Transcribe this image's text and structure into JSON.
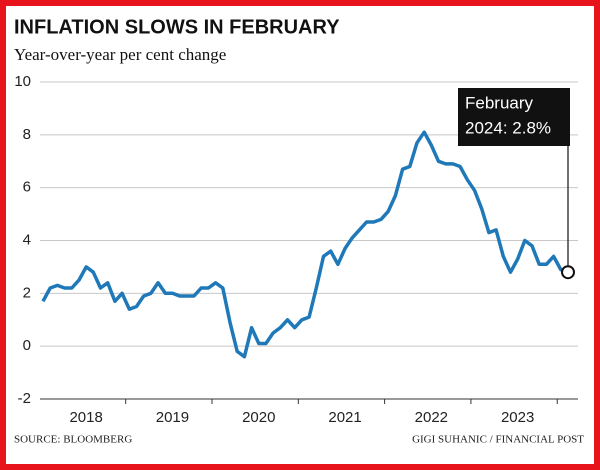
{
  "chart_data": {
    "type": "line",
    "title": "INFLATION SLOWS IN FEBRUARY",
    "subtitle": "Year-over-year per cent change",
    "source": "SOURCE: BLOOMBERG",
    "credit": "GIGI SUHANIC / FINANCIAL POST",
    "annotation": [
      "February",
      "2024: 2.8%"
    ],
    "categories": [
      null,
      null,
      null,
      null,
      null,
      null,
      "2018",
      null,
      null,
      null,
      null,
      null,
      null,
      null,
      null,
      null,
      null,
      null,
      "2019",
      null,
      null,
      null,
      null,
      null,
      null,
      null,
      null,
      null,
      null,
      null,
      "2020",
      null,
      null,
      null,
      null,
      null,
      null,
      null,
      null,
      null,
      null,
      null,
      "2021",
      null,
      null,
      null,
      null,
      null,
      null,
      null,
      null,
      null,
      null,
      null,
      "2022",
      null,
      null,
      null,
      null,
      null,
      null,
      null,
      null,
      null,
      null,
      null,
      "2023",
      null,
      null,
      null,
      null,
      null,
      null,
      null
    ],
    "series": [
      {
        "name": "Inflation",
        "color": "#1f78b8",
        "values": [
          1.7,
          2.2,
          2.3,
          2.2,
          2.2,
          2.5,
          3.0,
          2.8,
          2.2,
          2.4,
          1.7,
          2.0,
          1.4,
          1.5,
          1.9,
          2.0,
          2.4,
          2.0,
          2.0,
          1.9,
          1.9,
          1.9,
          2.2,
          2.2,
          2.4,
          2.2,
          0.9,
          -0.2,
          -0.4,
          0.7,
          0.1,
          0.1,
          0.5,
          0.7,
          1.0,
          0.7,
          1.0,
          1.1,
          2.2,
          3.4,
          3.6,
          3.1,
          3.7,
          4.1,
          4.4,
          4.7,
          4.7,
          4.8,
          5.1,
          5.7,
          6.7,
          6.8,
          7.7,
          8.1,
          7.6,
          7.0,
          6.9,
          6.9,
          6.8,
          6.3,
          5.9,
          5.2,
          4.3,
          4.4,
          3.4,
          2.8,
          3.3,
          4.0,
          3.8,
          3.1,
          3.1,
          3.4,
          2.9,
          2.8
        ]
      }
    ],
    "ylim": [
      -2,
      10
    ],
    "yticks": [
      -2,
      0,
      2,
      4,
      6,
      8,
      10
    ],
    "grid": true
  }
}
